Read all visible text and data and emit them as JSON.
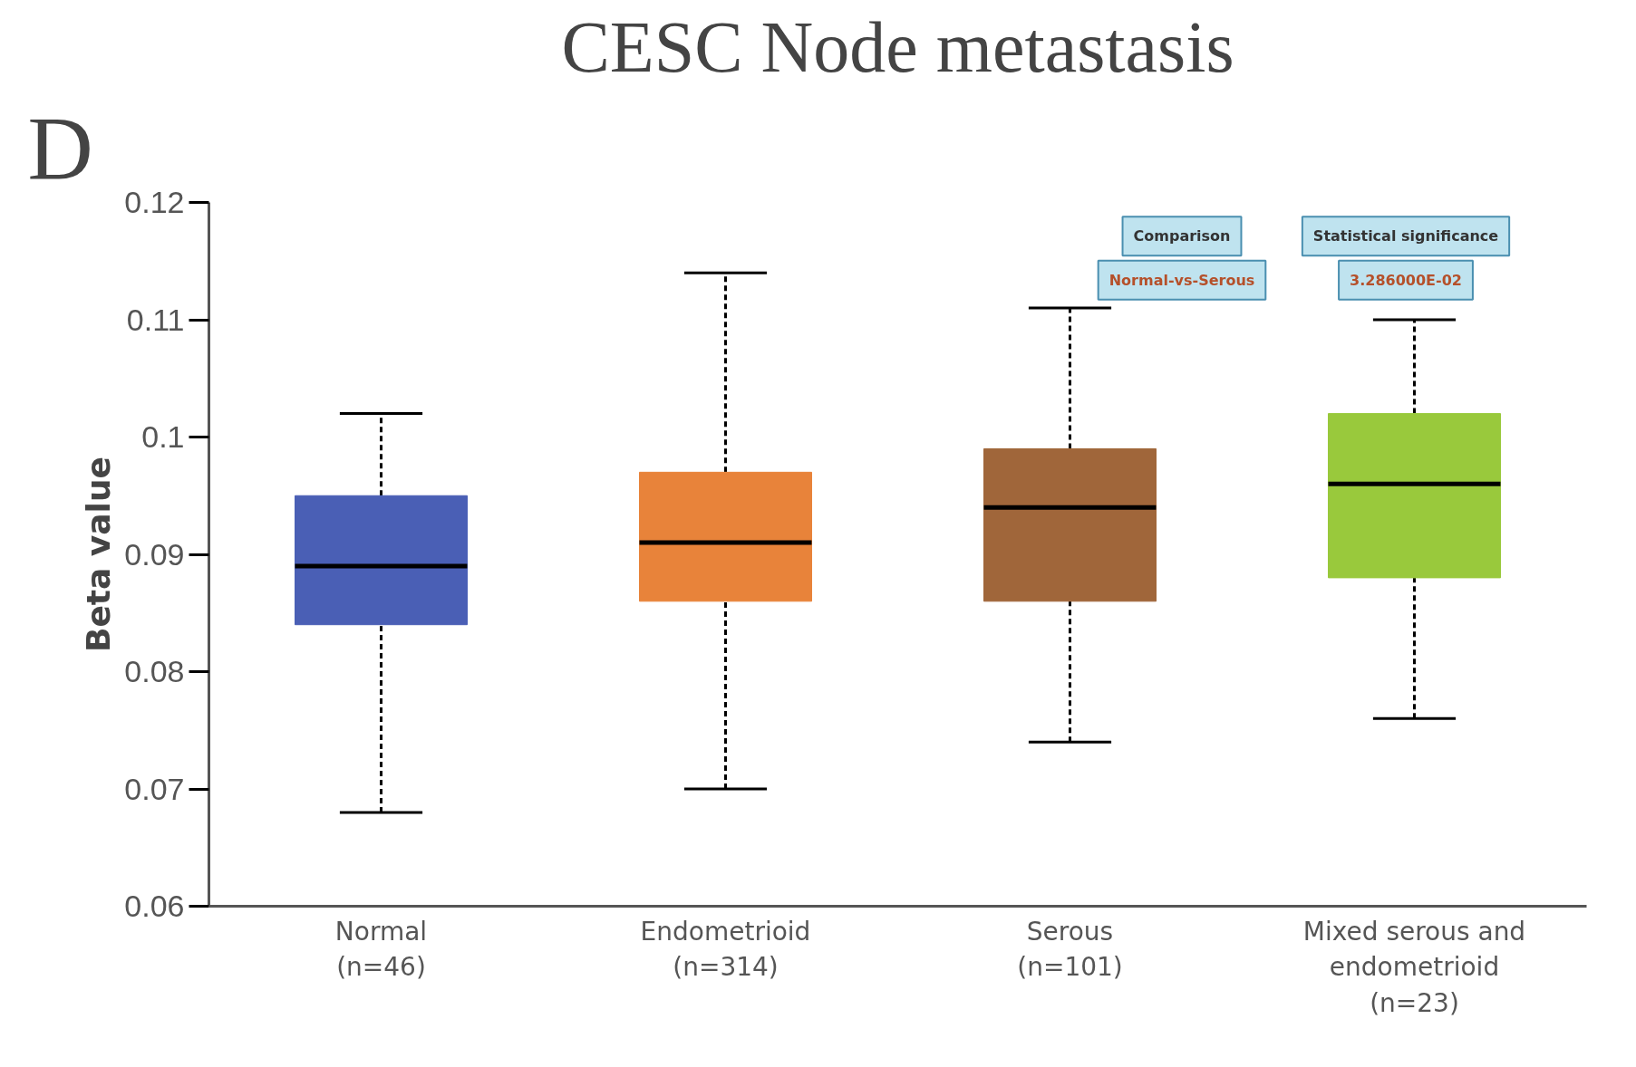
{
  "chart_data": {
    "type": "box",
    "title": "CESC Node metastasis",
    "ylabel": "Beta value",
    "categories": [
      "Normal\n(n=46)",
      "Endometrioid\n(n=314)",
      "Serous\n(n=101)",
      "Mixed serous and\nendometrioid\n(n=23)"
    ],
    "colors": [
      "#4a5fb5",
      "#e8833a",
      "#a0663a",
      "#99c93c"
    ],
    "boxes": [
      {
        "low": 0.068,
        "q1": 0.084,
        "median": 0.089,
        "q3": 0.095,
        "high": 0.102
      },
      {
        "low": 0.07,
        "q1": 0.086,
        "median": 0.091,
        "q3": 0.097,
        "high": 0.114
      },
      {
        "low": 0.074,
        "q1": 0.086,
        "median": 0.094,
        "q3": 0.099,
        "high": 0.111
      },
      {
        "low": 0.076,
        "q1": 0.088,
        "median": 0.096,
        "q3": 0.102,
        "high": 0.11
      }
    ],
    "ylim": [
      0.06,
      0.12
    ],
    "yticks": [
      0.06,
      0.07,
      0.08,
      0.09,
      0.1,
      0.11,
      0.12
    ],
    "annotations": [
      "D",
      "Comparison",
      "Statistical significance",
      "Normal-vs-Serous",
      "3.286000E-02"
    ],
    "grid": false
  }
}
